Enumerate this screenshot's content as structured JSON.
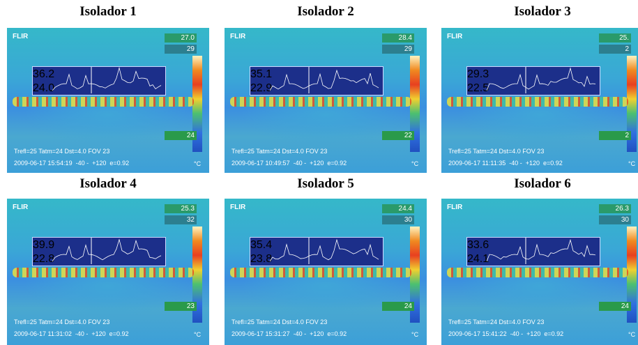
{
  "panels": [
    {
      "title": "Isolador 1",
      "logo": "FLIR",
      "spot": "27.0",
      "scale_max": "29",
      "scale_min": "24",
      "profile_max": "36.2",
      "profile_min": "24.0",
      "params": "Trefl=25 Tatm=24 Dst=4.0 FOV 23",
      "timestamp": "2009-06-17 15:54:19  -40 -  +120  e=0.92",
      "unit": "°C"
    },
    {
      "title": "Isolador 2",
      "logo": "FLIR",
      "spot": "28.4",
      "scale_max": "29",
      "scale_min": "22",
      "profile_max": "35.1",
      "profile_min": "22.9",
      "params": "Trefl=25 Tatm=24 Dst=4.0 FOV 23",
      "timestamp": "2009-06-17 10:49:57  -40 -  +120  e=0.92",
      "unit": "°C"
    },
    {
      "title": "Isolador 3",
      "logo": "FLIR",
      "spot": "25.",
      "scale_max": "2",
      "scale_min": "2",
      "profile_max": "29.3",
      "profile_min": "22.5",
      "params": "Trefl=25 Tatm=24 Dst=4.0 FOV 23",
      "timestamp": "2009-06-17 11:11:35  -40 -  +120  e=0.92",
      "unit": "°C"
    },
    {
      "title": "Isolador 4",
      "logo": "FLIR",
      "spot": "25.3",
      "scale_max": "32",
      "scale_min": "23",
      "profile_max": "39.9",
      "profile_min": "22.8",
      "params": "Trefl=25 Tatm=24 Dst=4.0 FOV 23",
      "timestamp": "2009-06-17 11:31:02  -40 -  +120  e=0.92",
      "unit": "°C"
    },
    {
      "title": "Isolador 5",
      "logo": "FLIR",
      "spot": "24.4",
      "scale_max": "30",
      "scale_min": "24",
      "profile_max": "35.4",
      "profile_min": "23.8",
      "params": "Trefl=25 Tatm=24 Dst=4.0 FOV 23",
      "timestamp": "2009-06-17 15:31:27  -40 -  +120  e=0.92",
      "unit": "°C"
    },
    {
      "title": "Isolador 6",
      "logo": "FLIR",
      "spot": "26.3",
      "scale_max": "30",
      "scale_min": "24",
      "profile_max": "33.6",
      "profile_min": "24.1",
      "params": "Trefl=25 Tatm=24 Dst=4.0 FOV 23",
      "timestamp": "2009-06-17 15:41:22  -40 -  +120  e=0.92",
      "unit": "°C"
    }
  ]
}
